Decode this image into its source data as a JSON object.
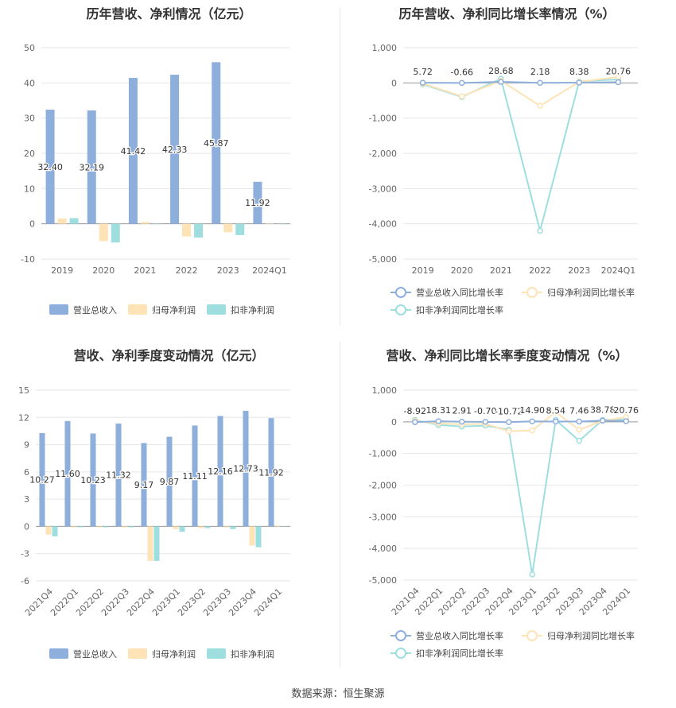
{
  "source_label": "数据来源：恒生聚源",
  "chart_data": [
    {
      "type": "bar",
      "title": "历年营收、净利情况（亿元）",
      "categories": [
        "2019",
        "2020",
        "2021",
        "2022",
        "2023",
        "2024Q1"
      ],
      "series": [
        {
          "name": "营业总收入",
          "values": [
            32.4,
            32.19,
            41.42,
            42.33,
            45.87,
            11.92
          ],
          "color": "#8eaedc"
        },
        {
          "name": "归母净利润",
          "values": [
            1.5,
            -4.9,
            0.5,
            -3.6,
            -2.4,
            0.1
          ],
          "color": "#fde3b5"
        },
        {
          "name": "扣非净利润",
          "values": [
            1.6,
            -5.3,
            0.0,
            -3.9,
            -3.2,
            0.0
          ],
          "color": "#9fdedf"
        }
      ],
      "data_labels": [
        "32.40",
        "32.19",
        "41.42",
        "42.33",
        "45.87",
        "11.92"
      ],
      "yticks": [
        "50",
        "40",
        "30",
        "20",
        "10",
        "0",
        "-10"
      ],
      "ylim": [
        -10,
        50
      ],
      "grid": true,
      "legend_position": "bottom"
    },
    {
      "type": "line",
      "title": "历年营收、净利同比增长率情况（%）",
      "categories": [
        "2019",
        "2020",
        "2021",
        "2022",
        "2023",
        "2024Q1"
      ],
      "series": [
        {
          "name": "营业总收入同比增长率",
          "values": [
            5.72,
            -0.66,
            28.68,
            2.18,
            8.38,
            20.76
          ],
          "color": "#8eaedc"
        },
        {
          "name": "归母净利润同比增长率",
          "values": [
            -20,
            -380,
            60,
            -650,
            30,
            170
          ],
          "color": "#fde3b5"
        },
        {
          "name": "扣非净利润同比增长率",
          "values": [
            -40,
            -400,
            120,
            -4200,
            40,
            100
          ],
          "color": "#9fdedf"
        }
      ],
      "data_labels": [
        "5.72",
        "-0.66",
        "28.68",
        "2.18",
        "8.38",
        "20.76"
      ],
      "yticks": [
        "1,000",
        "0",
        "-1,000",
        "-2,000",
        "-3,000",
        "-4,000",
        "-5,000"
      ],
      "ylim": [
        -5000,
        1000
      ],
      "grid": true,
      "legend_position": "bottom"
    },
    {
      "type": "bar",
      "title": "营收、净利季度变动情况（亿元）",
      "categories": [
        "2021Q4",
        "2022Q1",
        "2022Q2",
        "2022Q3",
        "2022Q4",
        "2023Q1",
        "2023Q2",
        "2023Q3",
        "2023Q4",
        "2024Q1"
      ],
      "series": [
        {
          "name": "营业总收入",
          "values": [
            10.27,
            11.6,
            10.23,
            11.32,
            9.17,
            9.87,
            11.11,
            12.16,
            12.73,
            11.92
          ],
          "color": "#8eaedc"
        },
        {
          "name": "归母净利润",
          "values": [
            -0.9,
            -0.1,
            -0.1,
            -0.1,
            -3.8,
            -0.3,
            -0.2,
            -0.1,
            -2.1,
            0.1
          ],
          "color": "#fde3b5"
        },
        {
          "name": "扣非净利润",
          "values": [
            -1.1,
            -0.1,
            -0.1,
            -0.1,
            -3.8,
            -0.6,
            -0.2,
            -0.3,
            -2.3,
            0.0
          ],
          "color": "#9fdedf"
        }
      ],
      "data_labels": [
        "10.27",
        "11.60",
        "10.23",
        "11.32",
        "9.17",
        "9.87",
        "11.11",
        "12.16",
        "12.73",
        "11.92"
      ],
      "yticks": [
        "15",
        "12",
        "9",
        "6",
        "3",
        "0",
        "-3",
        "-6"
      ],
      "ylim": [
        -6,
        15
      ],
      "grid": true,
      "legend_position": "bottom"
    },
    {
      "type": "line",
      "title": "营收、净利同比增长率季度变动情况（%）",
      "categories": [
        "2021Q4",
        "2022Q1",
        "2022Q2",
        "2022Q3",
        "2022Q4",
        "2023Q1",
        "2023Q2",
        "2023Q3",
        "2023Q4",
        "2024Q1"
      ],
      "series": [
        {
          "name": "营业总收入同比增长率",
          "values": [
            -8.92,
            18.31,
            2.91,
            -0.7,
            -10.72,
            14.9,
            8.54,
            7.46,
            38.78,
            20.76
          ],
          "color": "#8eaedc"
        },
        {
          "name": "归母净利润同比增长率",
          "values": [
            30,
            -50,
            -80,
            -60,
            -300,
            -270,
            300,
            -250,
            30,
            150
          ],
          "color": "#fde3b5"
        },
        {
          "name": "扣非净利润同比增长率",
          "values": [
            60,
            -100,
            -150,
            -120,
            -250,
            -4820,
            60,
            -600,
            60,
            70
          ],
          "color": "#9fdedf"
        }
      ],
      "data_labels": [
        "-8.92",
        "18.31",
        "2.91",
        "-0.70",
        "-10.72",
        "14.90",
        "8.54",
        "7.46",
        "38.78",
        "20.76"
      ],
      "yticks": [
        "1,000",
        "0",
        "-1,000",
        "-2,000",
        "-3,000",
        "-4,000",
        "-5,000"
      ],
      "ylim": [
        -5000,
        1000
      ],
      "grid": true,
      "legend_position": "bottom"
    }
  ]
}
